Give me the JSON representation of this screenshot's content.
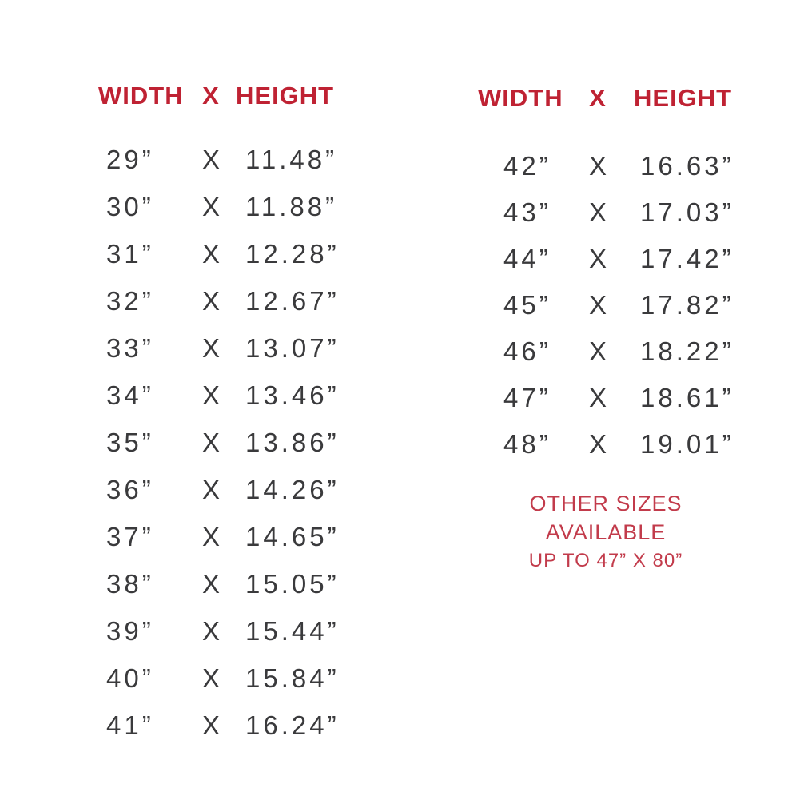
{
  "colors": {
    "header_red": "#BF2233",
    "note_red": "#C23B4B",
    "text_dark": "#3A3A3C",
    "background": "#FFFFFF"
  },
  "left_table": {
    "header": {
      "width_label": "WIDTH",
      "x_label": "X",
      "height_label": "HEIGHT"
    },
    "rows": [
      {
        "width": "29”",
        "sep": "X",
        "height": "11.48”"
      },
      {
        "width": "30”",
        "sep": "X",
        "height": "11.88”"
      },
      {
        "width": "31”",
        "sep": "X",
        "height": "12.28”"
      },
      {
        "width": "32”",
        "sep": "X",
        "height": "12.67”"
      },
      {
        "width": "33”",
        "sep": "X",
        "height": "13.07”"
      },
      {
        "width": "34”",
        "sep": "X",
        "height": "13.46”"
      },
      {
        "width": "35”",
        "sep": "X",
        "height": "13.86”"
      },
      {
        "width": "36”",
        "sep": "X",
        "height": "14.26”"
      },
      {
        "width": "37”",
        "sep": "X",
        "height": "14.65”"
      },
      {
        "width": "38”",
        "sep": "X",
        "height": "15.05”"
      },
      {
        "width": "39”",
        "sep": "X",
        "height": "15.44”"
      },
      {
        "width": "40”",
        "sep": "X",
        "height": "15.84”"
      },
      {
        "width": "41”",
        "sep": "X",
        "height": "16.24”"
      }
    ]
  },
  "right_table": {
    "header": {
      "width_label": "WIDTH",
      "x_label": "X",
      "height_label": "HEIGHT"
    },
    "rows": [
      {
        "width": "42”",
        "sep": "X",
        "height": "16.63”"
      },
      {
        "width": "43”",
        "sep": "X",
        "height": "17.03”"
      },
      {
        "width": "44”",
        "sep": "X",
        "height": "17.42”"
      },
      {
        "width": "45”",
        "sep": "X",
        "height": "17.82”"
      },
      {
        "width": "46”",
        "sep": "X",
        "height": "18.22”"
      },
      {
        "width": "47”",
        "sep": "X",
        "height": "18.61”"
      },
      {
        "width": "48”",
        "sep": "X",
        "height": "19.01”"
      }
    ]
  },
  "note": {
    "line1": "OTHER SIZES AVAILABLE",
    "line2": "UP TO 47” X 80”"
  },
  "chart_data": [
    {
      "type": "table",
      "title": "WIDTH X HEIGHT",
      "columns": [
        "WIDTH (in)",
        "HEIGHT (in)"
      ],
      "rows": [
        [
          29,
          11.48
        ],
        [
          30,
          11.88
        ],
        [
          31,
          12.28
        ],
        [
          32,
          12.67
        ],
        [
          33,
          13.07
        ],
        [
          34,
          13.46
        ],
        [
          35,
          13.86
        ],
        [
          36,
          14.26
        ],
        [
          37,
          14.65
        ],
        [
          38,
          15.05
        ],
        [
          39,
          15.44
        ],
        [
          40,
          15.84
        ],
        [
          41,
          16.24
        ]
      ]
    },
    {
      "type": "table",
      "title": "WIDTH X HEIGHT",
      "columns": [
        "WIDTH (in)",
        "HEIGHT (in)"
      ],
      "rows": [
        [
          42,
          16.63
        ],
        [
          43,
          17.03
        ],
        [
          44,
          17.42
        ],
        [
          45,
          17.82
        ],
        [
          46,
          18.22
        ],
        [
          47,
          18.61
        ],
        [
          48,
          19.01
        ]
      ],
      "annotation": "OTHER SIZES AVAILABLE UP TO 47” X 80”"
    }
  ]
}
